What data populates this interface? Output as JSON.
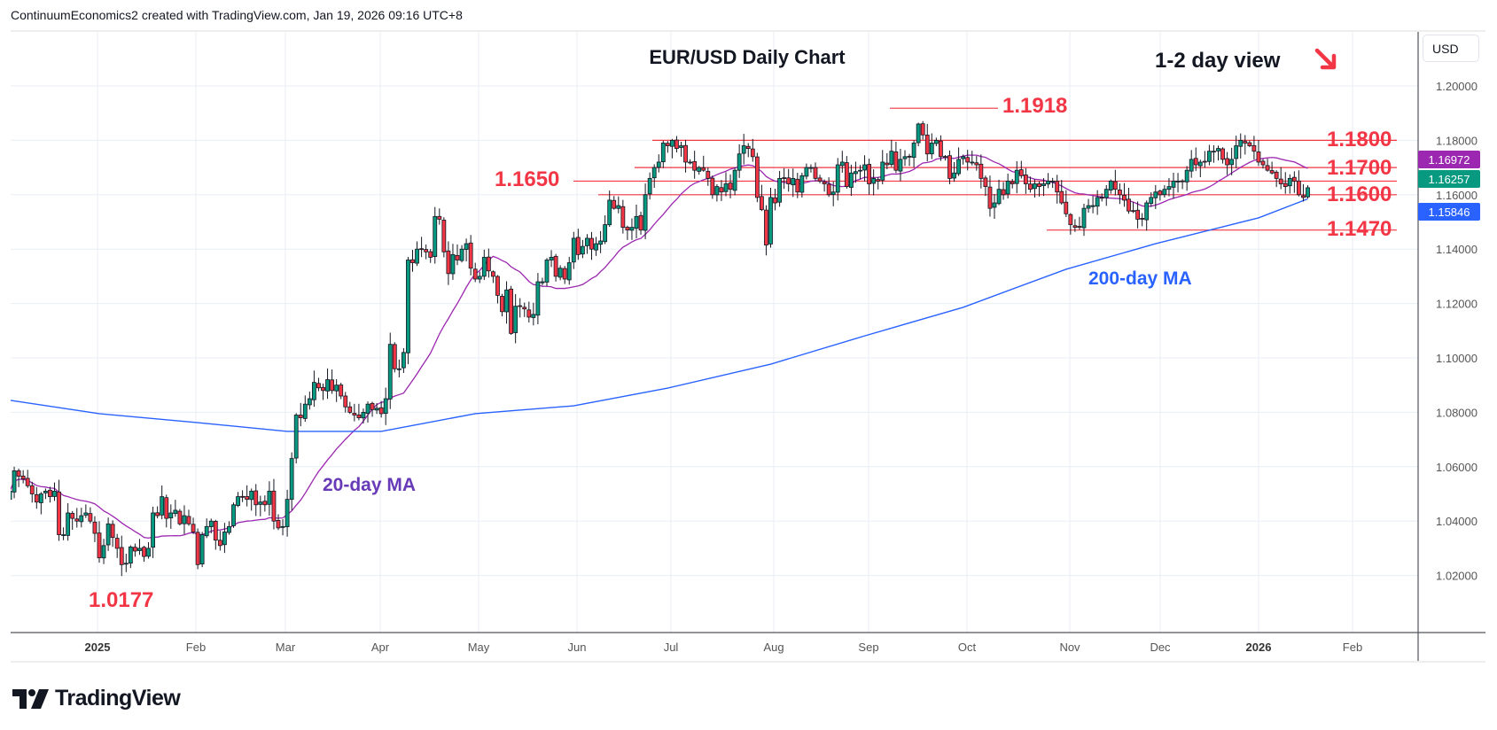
{
  "header": {
    "text": "ContinuumEconomics2 created with TradingView.com, Jan 19, 2026 09:16 UTC+8"
  },
  "footer": {
    "brand": "TradingView"
  },
  "price_axis": {
    "currency_button": "USD"
  },
  "chart_data": {
    "type": "candlestick",
    "title": "EUR/USD Daily Chart",
    "subtitle": "1-2 day view",
    "direction_icon": "arrow-down-right-icon",
    "xlabel": "",
    "ylabel": "",
    "ylim": [
      1.0,
      1.21
    ],
    "grid": true,
    "y_ticks": [
      "1.20000",
      "1.18000",
      "1.16000",
      "1.14000",
      "1.12000",
      "1.10000",
      "1.08000",
      "1.06000",
      "1.04000",
      "1.02000"
    ],
    "x_ticks": [
      "2025",
      "Feb",
      "Mar",
      "Apr",
      "May",
      "Jun",
      "Jul",
      "Aug",
      "Sep",
      "Oct",
      "Nov",
      "Dec",
      "2026",
      "Feb"
    ],
    "colors": {
      "up": "#089981",
      "down": "#f23645",
      "ma20": "#9c27b0",
      "ma200": "#2962ff",
      "levels": "#f23645"
    },
    "closes_by_month": [
      {
        "month": "2024-12",
        "close": [
          1.051,
          1.0585,
          1.0565,
          1.0555,
          1.053,
          1.05,
          1.047,
          1.05,
          1.051,
          1.049,
          1.051,
          1.035,
          1.035,
          1.043,
          1.041,
          1.04,
          1.042,
          1.043,
          1.04,
          1.0355
        ]
      },
      {
        "month": "2025-01",
        "close": [
          1.0265,
          1.031,
          1.039,
          1.034,
          1.03,
          1.024,
          1.0245,
          1.0305,
          1.029,
          1.03,
          1.027,
          1.03,
          1.043,
          1.042,
          1.049,
          1.041,
          1.043,
          1.044,
          1.039,
          1.042,
          1.039,
          1.036
        ]
      },
      {
        "month": "2025-02",
        "close": [
          1.024,
          1.035,
          1.038,
          1.04,
          1.033,
          1.031,
          1.036,
          1.038,
          1.046,
          1.049,
          1.049,
          1.048,
          1.051,
          1.046,
          1.047,
          1.046,
          1.051,
          1.04,
          1.0375,
          1.038
        ]
      },
      {
        "month": "2025-03",
        "close": [
          1.048,
          1.063,
          1.079,
          1.078,
          1.083,
          1.085,
          1.091,
          1.089,
          1.088,
          1.092,
          1.088,
          1.09,
          1.086,
          1.082,
          1.08,
          1.079,
          1.078,
          1.08,
          1.083,
          1.081,
          1.0815
        ]
      },
      {
        "month": "2025-04",
        "close": [
          1.0795,
          1.085,
          1.105,
          1.096,
          1.096,
          1.102,
          1.136,
          1.135,
          1.14,
          1.14,
          1.139,
          1.137,
          1.152,
          1.151,
          1.139,
          1.131,
          1.138,
          1.136,
          1.14,
          1.142,
          1.133
        ]
      },
      {
        "month": "2025-05",
        "close": [
          1.129,
          1.13,
          1.137,
          1.132,
          1.13,
          1.123,
          1.117,
          1.125,
          1.109,
          1.119,
          1.119,
          1.118,
          1.115,
          1.116,
          1.128,
          1.128,
          1.136,
          1.137,
          1.13,
          1.133,
          1.129,
          1.135
        ]
      },
      {
        "month": "2025-06",
        "close": [
          1.144,
          1.138,
          1.141,
          1.144,
          1.14,
          1.142,
          1.143,
          1.149,
          1.158,
          1.155,
          1.156,
          1.148,
          1.147,
          1.148,
          1.152,
          1.147,
          1.16,
          1.166,
          1.17,
          1.172,
          1.179
        ]
      },
      {
        "month": "2025-07",
        "close": [
          1.178,
          1.18,
          1.177,
          1.178,
          1.172,
          1.172,
          1.169,
          1.17,
          1.169,
          1.166,
          1.16,
          1.163,
          1.161,
          1.164,
          1.162,
          1.169,
          1.175,
          1.178,
          1.177,
          1.174,
          1.159,
          1.1545,
          1.1415
        ]
      },
      {
        "month": "2025-08",
        "close": [
          1.159,
          1.157,
          1.166,
          1.166,
          1.164,
          1.166,
          1.161,
          1.167,
          1.17,
          1.17,
          1.166,
          1.165,
          1.164,
          1.16,
          1.161,
          1.171,
          1.172,
          1.163,
          1.168,
          1.1685,
          1.169
        ]
      },
      {
        "month": "2025-09",
        "close": [
          1.171,
          1.164,
          1.166,
          1.165,
          1.172,
          1.171,
          1.176,
          1.169,
          1.173,
          1.174,
          1.174,
          1.179,
          1.186,
          1.182,
          1.175,
          1.179,
          1.18,
          1.174,
          1.174,
          1.166,
          1.168,
          1.173
        ]
      },
      {
        "month": "2025-10",
        "close": [
          1.174,
          1.172,
          1.172,
          1.171,
          1.166,
          1.163,
          1.155,
          1.157,
          1.162,
          1.16,
          1.165,
          1.164,
          1.169,
          1.167,
          1.164,
          1.162,
          1.164,
          1.163,
          1.164,
          1.165,
          1.165,
          1.161,
          1.157
        ]
      },
      {
        "month": "2025-11",
        "close": [
          1.153,
          1.149,
          1.148,
          1.148,
          1.155,
          1.156,
          1.156,
          1.159,
          1.159,
          1.162,
          1.165,
          1.162,
          1.16,
          1.158,
          1.154,
          1.154,
          1.151,
          1.151,
          1.157,
          1.159
        ]
      },
      {
        "month": "2025-12",
        "close": [
          1.161,
          1.16,
          1.162,
          1.163,
          1.165,
          1.165,
          1.165,
          1.169,
          1.173,
          1.171,
          1.172,
          1.172,
          1.176,
          1.176,
          1.177,
          1.173,
          1.171,
          1.173,
          1.178,
          1.18,
          1.179,
          1.178,
          1.176
        ]
      },
      {
        "month": "2026-01",
        "close": [
          1.172,
          1.171,
          1.169,
          1.168,
          1.166,
          1.164,
          1.163,
          1.166,
          1.165,
          1.16,
          1.159,
          1.16257
        ]
      }
    ],
    "ma200": [
      {
        "date": "2024-12",
        "value": 1.0844
      },
      {
        "date": "2025-01",
        "value": 1.0795
      },
      {
        "date": "2025-02",
        "value": 1.0762
      },
      {
        "date": "2025-03",
        "value": 1.073
      },
      {
        "date": "2025-04",
        "value": 1.073
      },
      {
        "date": "2025-05",
        "value": 1.0795
      },
      {
        "date": "2025-06",
        "value": 1.0824
      },
      {
        "date": "2025-07",
        "value": 1.0889
      },
      {
        "date": "2025-08",
        "value": 1.0977
      },
      {
        "date": "2025-09",
        "value": 1.1081
      },
      {
        "date": "2025-10",
        "value": 1.1186
      },
      {
        "date": "2025-11",
        "value": 1.1326
      },
      {
        "date": "2025-12",
        "value": 1.142
      },
      {
        "date": "2026-01",
        "value": 1.1515
      },
      {
        "date": "2026-01-16",
        "value": 1.15846
      }
    ],
    "last_values": [
      {
        "label": "1.16972",
        "series": "20-day MA",
        "color": "#9c27b0",
        "value": 1.16972
      },
      {
        "label": "1.16257",
        "series": "EUR/USD",
        "color": "#089981",
        "value": 1.16257
      },
      {
        "label": "1.15846",
        "series": "200-day MA",
        "color": "#2962ff",
        "value": 1.15846
      }
    ],
    "levels": [
      {
        "label": "1.1918",
        "value": 1.1918
      },
      {
        "label": "1.1800",
        "value": 1.18
      },
      {
        "label": "1.1700",
        "value": 1.17
      },
      {
        "label": "1.1650",
        "value": 1.165
      },
      {
        "label": "1.1600",
        "value": 1.16
      },
      {
        "label": "1.1470",
        "value": 1.147
      }
    ],
    "annotations": {
      "low": "1.0177",
      "ma20_label": "20-day MA",
      "ma200_label": "200-day MA"
    }
  }
}
